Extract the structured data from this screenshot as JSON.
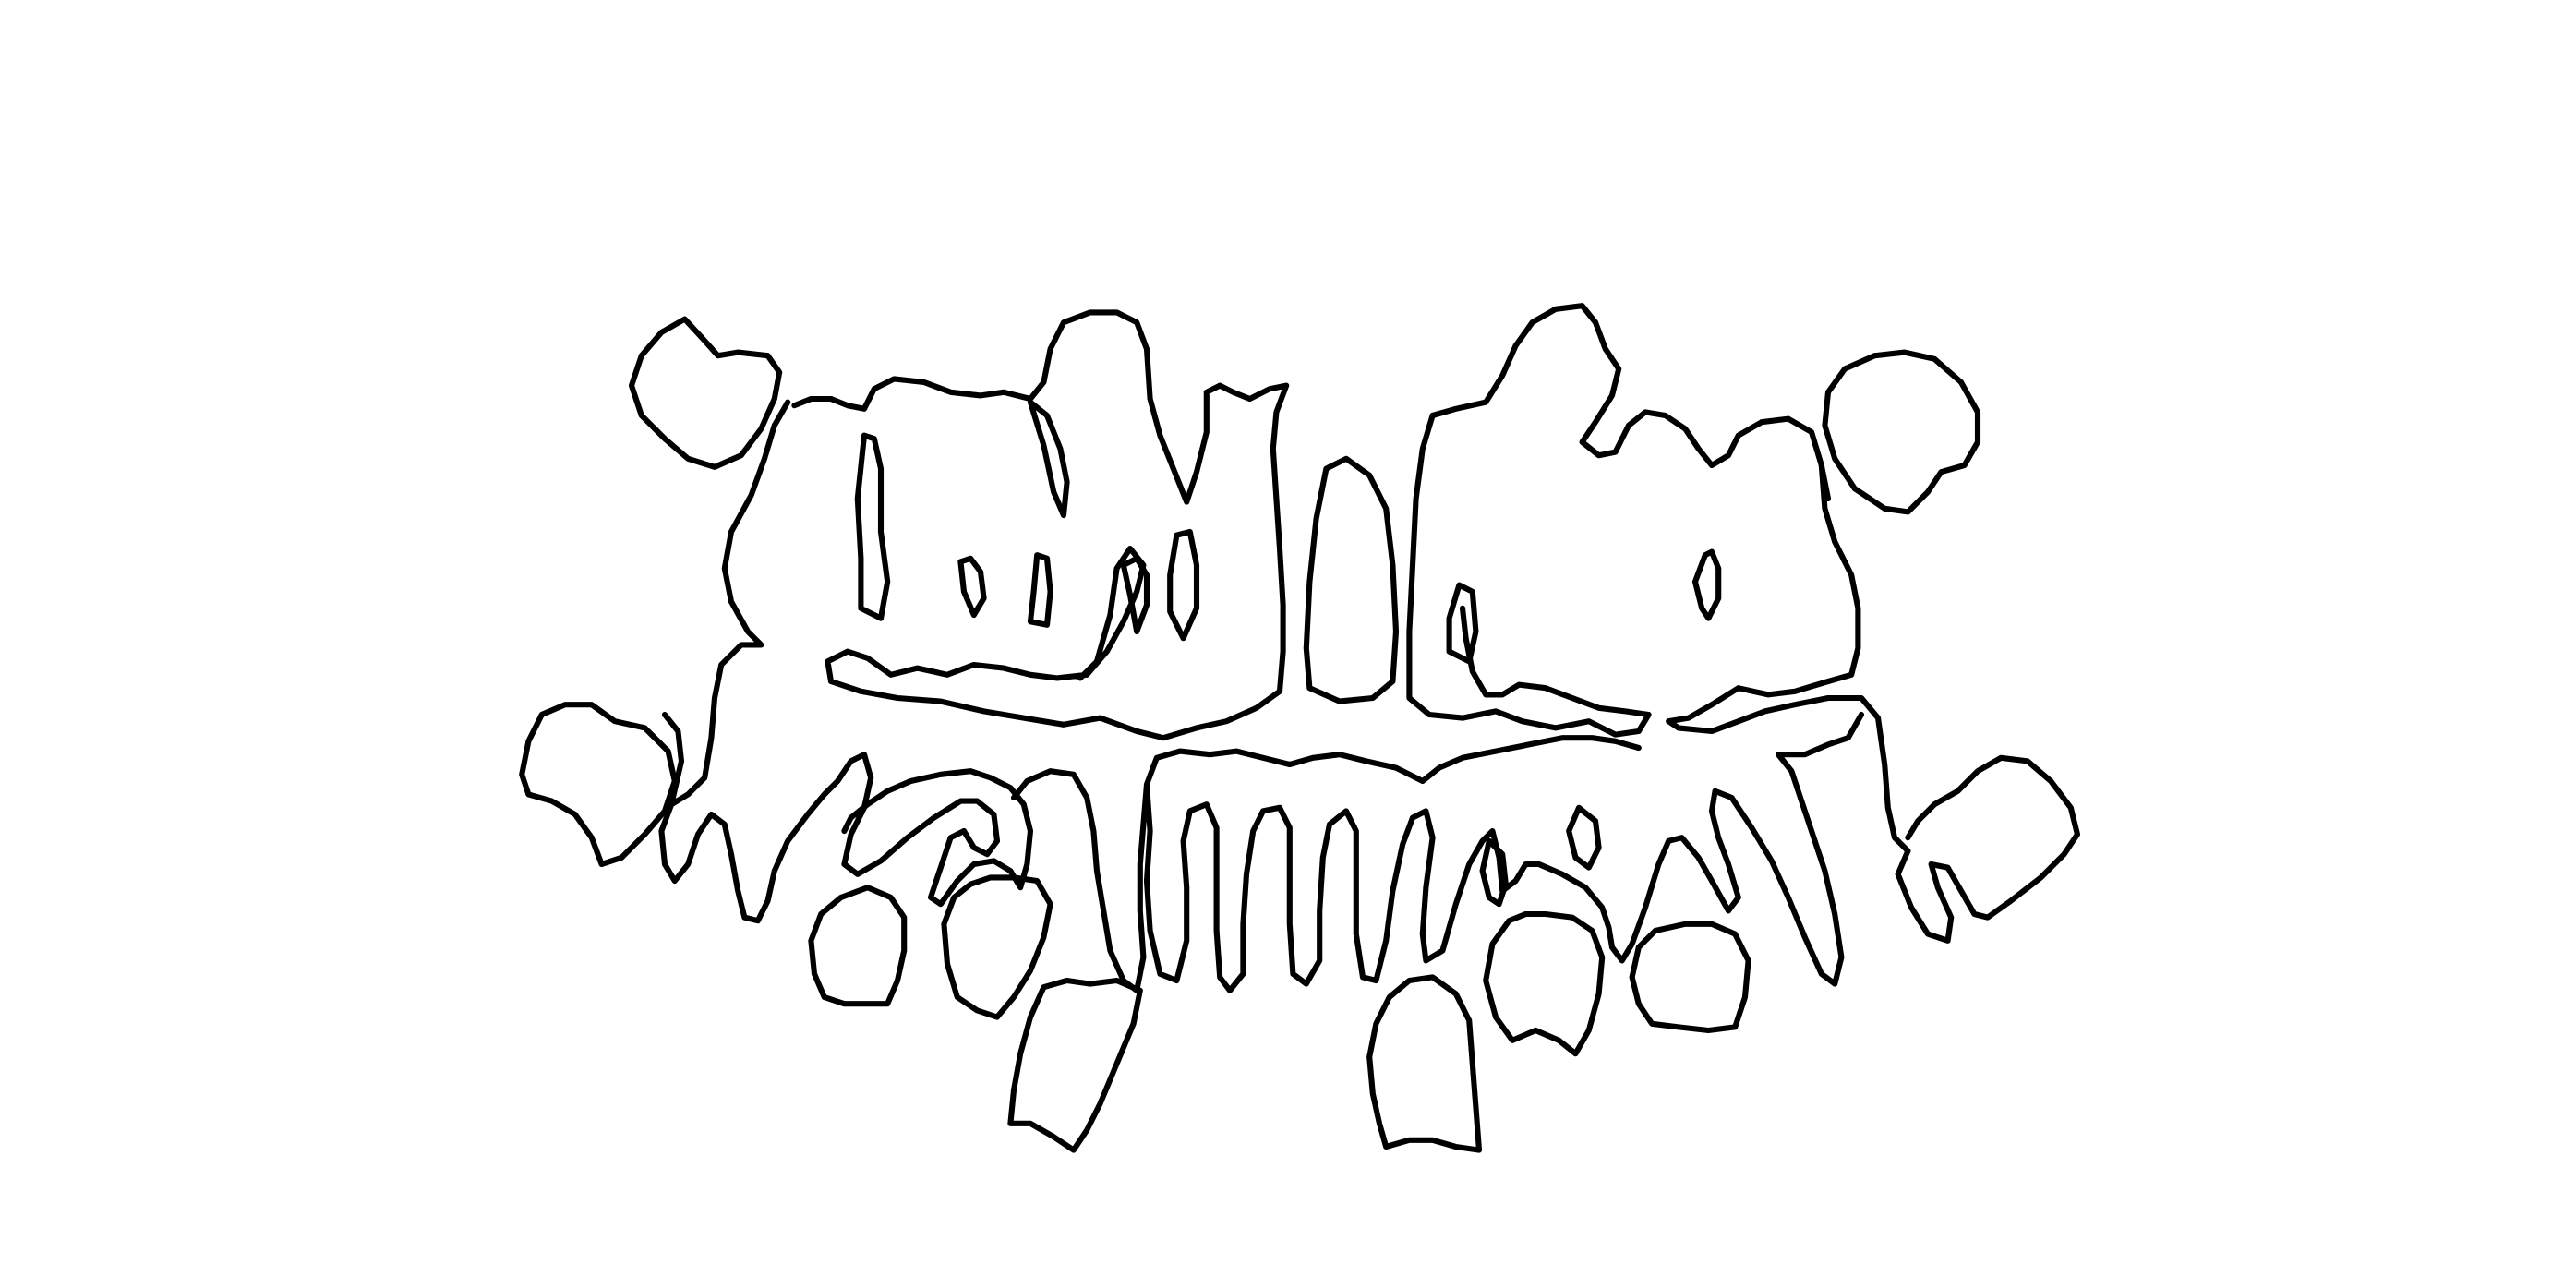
{
  "figure": {
    "kind": "dental panoramic segmentation contour map",
    "line_color": "#000000",
    "background_color": "#ffffff",
    "contours": [
      {
        "name": "upper-left-third-molar-crown",
        "region": "upper-left"
      },
      {
        "name": "upper-left-molar-complex",
        "region": "upper-left"
      },
      {
        "name": "upper-left-molar-pulp-1",
        "region": "upper-left"
      },
      {
        "name": "upper-left-molar-pulp-2",
        "region": "upper-left"
      },
      {
        "name": "upper-left-molar-pulp-3",
        "region": "upper-left"
      },
      {
        "name": "upper-left-premolar-pulp",
        "region": "upper-left"
      },
      {
        "name": "upper-left-canine-pulp",
        "region": "upper-left"
      },
      {
        "name": "upper-left-incisor",
        "region": "upper-center"
      },
      {
        "name": "upper-left-central-incisor-pulp",
        "region": "upper-center"
      },
      {
        "name": "upper-right-molar-complex",
        "region": "upper-right"
      },
      {
        "name": "upper-right-premolar-pulp",
        "region": "upper-right"
      },
      {
        "name": "upper-right-molar-pulp",
        "region": "upper-right"
      },
      {
        "name": "upper-right-third-molar-crown",
        "region": "upper-right"
      },
      {
        "name": "lower-left-third-molar-crown",
        "region": "lower-left"
      },
      {
        "name": "lower-left-molar-roots",
        "region": "lower-left"
      },
      {
        "name": "lower-anterior-roots",
        "region": "lower-center"
      },
      {
        "name": "lower-right-molar-roots",
        "region": "lower-right"
      },
      {
        "name": "lower-right-third-molar-crown",
        "region": "lower-right"
      },
      {
        "name": "lower-left-developing-premolar",
        "region": "lower-left"
      },
      {
        "name": "lower-left-developing-canine",
        "region": "lower-left"
      },
      {
        "name": "lower-left-developing-incisor",
        "region": "lower-center"
      },
      {
        "name": "lower-right-developing-incisor",
        "region": "lower-center"
      },
      {
        "name": "lower-right-developing-canine",
        "region": "lower-right"
      },
      {
        "name": "lower-right-developing-premolar",
        "region": "lower-right"
      },
      {
        "name": "lower-right-small-pulp",
        "region": "lower-right"
      },
      {
        "name": "lower-right-premolar-pulp",
        "region": "lower-right"
      }
    ]
  }
}
